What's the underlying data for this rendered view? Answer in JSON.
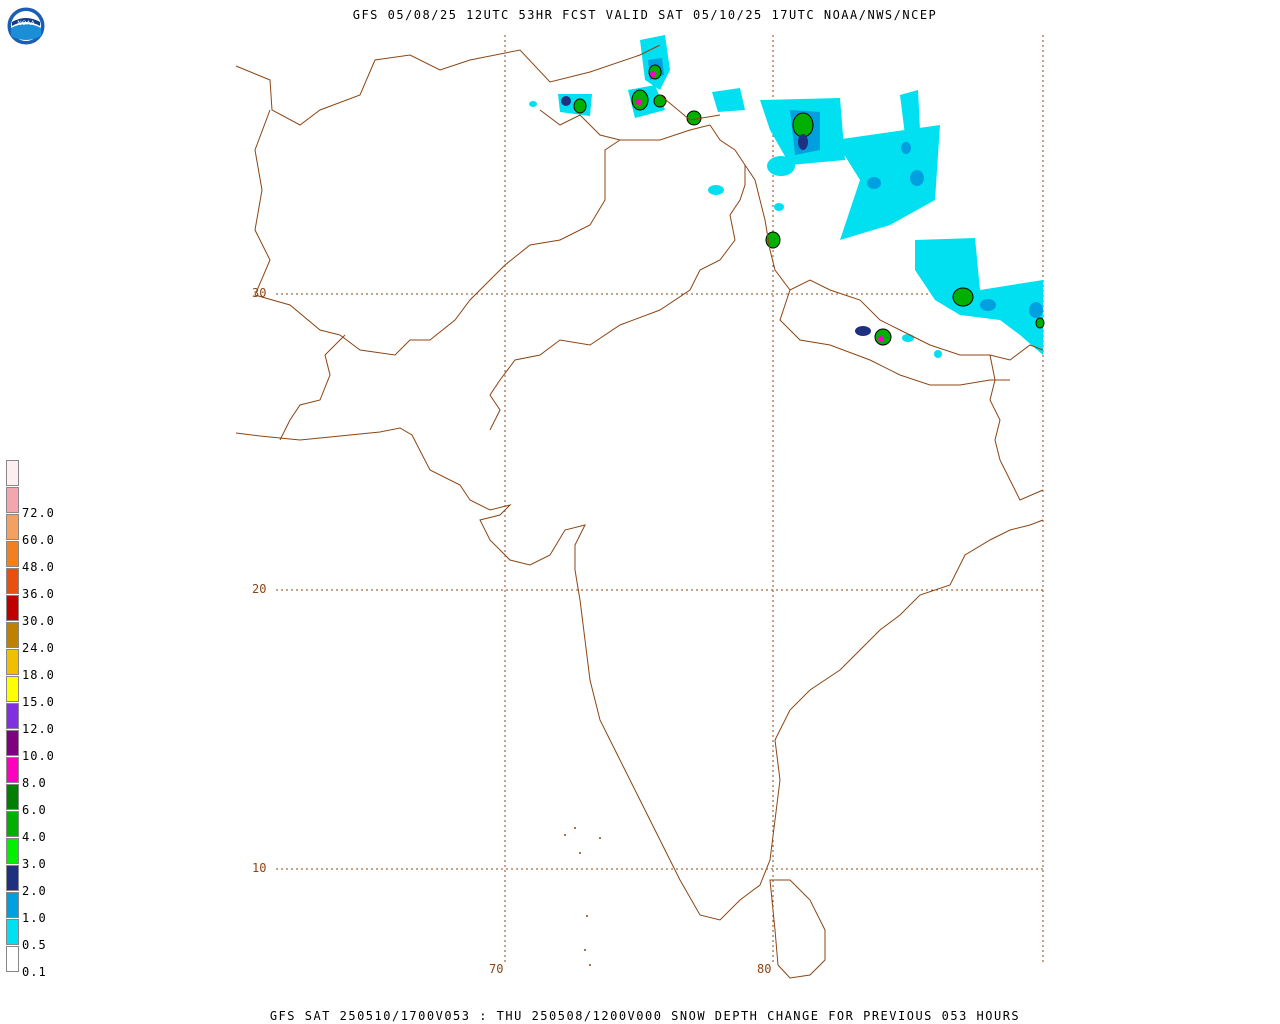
{
  "title": "GFS 05/08/25 12UTC 53HR FCST VALID SAT 05/10/25 17UTC NOAA/NWS/NCEP",
  "footer": "GFS SAT 250510/1700V053 : THU 250508/1200V000 SNOW DEPTH CHANGE FOR PREVIOUS 053 HOURS",
  "logo": {
    "icon": "noaa-logo-icon",
    "text": "NOAA"
  },
  "map": {
    "border_color": "#8B4513",
    "grid_color": "#8B4513",
    "lat_labels": [
      "30",
      "20",
      "10"
    ],
    "lon_labels": [
      "70",
      "80"
    ]
  },
  "legend": {
    "items": [
      {
        "label": "",
        "color": "#FDEFEF"
      },
      {
        "label": "72.0",
        "color": "#F4A6B0"
      },
      {
        "label": "60.0",
        "color": "#F3A060"
      },
      {
        "label": "48.0",
        "color": "#F08020"
      },
      {
        "label": "36.0",
        "color": "#E85010"
      },
      {
        "label": "30.0",
        "color": "#C00000"
      },
      {
        "label": "24.0",
        "color": "#C08000"
      },
      {
        "label": "18.0",
        "color": "#F0C000"
      },
      {
        "label": "15.0",
        "color": "#FFFF00"
      },
      {
        "label": "12.0",
        "color": "#8030E0"
      },
      {
        "label": "10.0",
        "color": "#800080"
      },
      {
        "label": "8.0",
        "color": "#FF00C0"
      },
      {
        "label": "6.0",
        "color": "#008000"
      },
      {
        "label": "4.0",
        "color": "#00B000"
      },
      {
        "label": "3.0",
        "color": "#00F000"
      },
      {
        "label": "2.0",
        "color": "#203080"
      },
      {
        "label": "1.0",
        "color": "#00A0E0"
      },
      {
        "label": "0.5",
        "color": "#00E0F0"
      },
      {
        "label": "0.1",
        "color": "#FFFFFF"
      }
    ]
  }
}
